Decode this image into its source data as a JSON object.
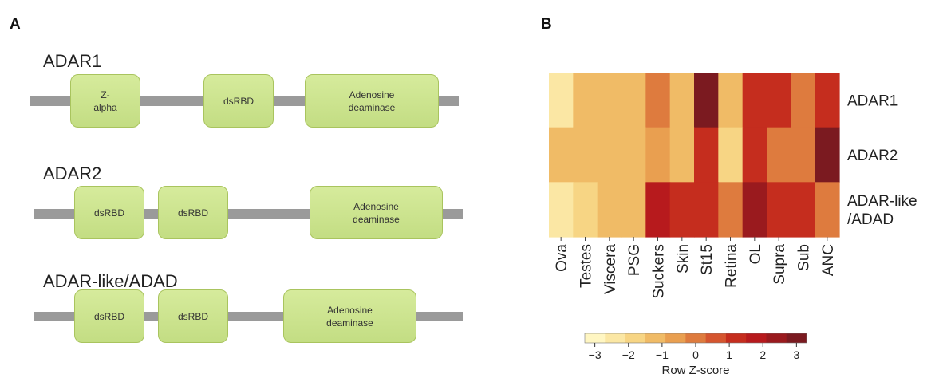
{
  "panels": {
    "a": "A",
    "b": "B"
  },
  "panel_a": {
    "proteins": [
      {
        "name": "ADAR1",
        "domains": [
          "Z-\nalpha",
          "dsRBD",
          "Adenosine\ndeaminase"
        ]
      },
      {
        "name": "ADAR2",
        "domains": [
          "dsRBD",
          "dsRBD",
          "Adenosine\ndeaminase"
        ]
      },
      {
        "name": "ADAR-like/ADAD",
        "domains": [
          "dsRBD",
          "dsRBD",
          "Adenosine\ndeaminase"
        ]
      }
    ]
  },
  "chart_data": {
    "type": "heatmap",
    "columns": [
      "Ova",
      "Testes",
      "Viscera",
      "PSG",
      "Suckers",
      "Skin",
      "St15",
      "Retina",
      "OL",
      "Supra",
      "Sub",
      "ANC"
    ],
    "rows": [
      {
        "label": "ADAR1",
        "values": [
          -2.3,
          -1.3,
          -1.2,
          -1.2,
          -0.2,
          -1.2,
          3.0,
          -1.2,
          1.0,
          0.9,
          0.1,
          1.0
        ]
      },
      {
        "label": "ADAR2",
        "values": [
          -1.1,
          -1.1,
          -1.3,
          -1.3,
          -0.7,
          -1.3,
          1.3,
          -1.6,
          1.1,
          0.0,
          0.0,
          3.1
        ]
      },
      {
        "label": "ADAR-like\n/ADAD",
        "values": [
          -2.6,
          -2.0,
          -1.0,
          -1.0,
          1.9,
          1.2,
          1.0,
          -0.1,
          2.1,
          1.1,
          1.1,
          -0.1
        ]
      }
    ],
    "colorbar": {
      "title": "Row Z-score",
      "range": [
        -3.3,
        3.3
      ],
      "ticks": [
        -3,
        -2,
        -1,
        0,
        1,
        2,
        3
      ],
      "tick_labels": [
        "−3",
        "−2",
        "−1",
        "0",
        "1",
        "2",
        "3"
      ],
      "colors": [
        "#fff6c2",
        "#fbe7a4",
        "#f7d584",
        "#f0bb66",
        "#e99f50",
        "#de7b3e",
        "#d5552f",
        "#c52d1e",
        "#b71a1d",
        "#9a1a1e",
        "#7b1a20"
      ]
    }
  }
}
